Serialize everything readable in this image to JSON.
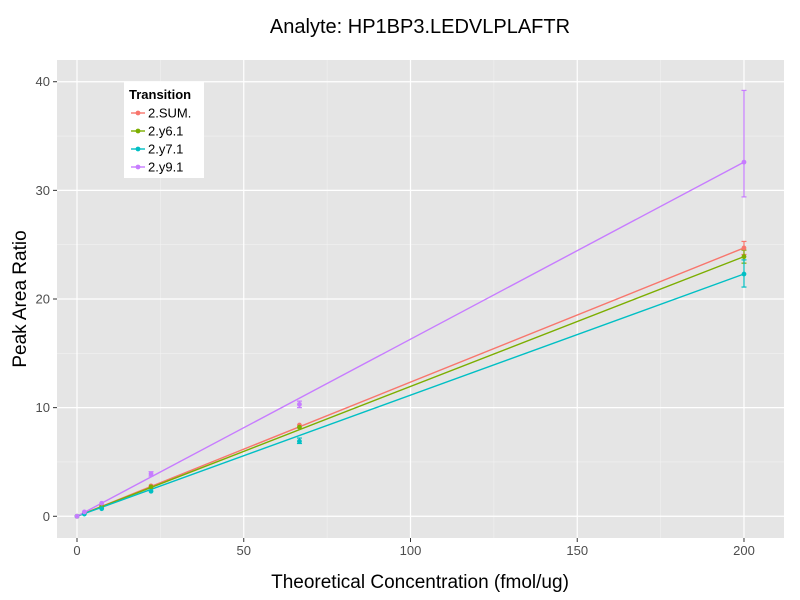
{
  "chart_data": {
    "type": "line",
    "title": "Analyte: HP1BP3.LEDVLPLAFTR",
    "xlabel": "Theoretical Concentration (fmol/ug)",
    "ylabel": "Peak Area Ratio",
    "xlim": [
      -6,
      212
    ],
    "ylim": [
      -2,
      42
    ],
    "x_ticks": [
      0,
      50,
      100,
      150,
      200
    ],
    "y_ticks": [
      0,
      10,
      20,
      30,
      40
    ],
    "grid": true,
    "legend": {
      "title": "Transition",
      "position": "top-left"
    },
    "x": [
      0,
      2.2,
      7.4,
      22.2,
      66.7,
      200
    ],
    "series": [
      {
        "name": "2.SUM.",
        "color": "#F8766D",
        "points": [
          0,
          0.3,
          1.0,
          2.8,
          8.4,
          24.7
        ],
        "fit": [
          0,
          24.7
        ],
        "error": [
          null,
          null,
          null,
          null,
          null,
          [
            24.1,
            25.3
          ]
        ]
      },
      {
        "name": "2.y6.1",
        "color": "#7CAE00",
        "points": [
          0,
          0.3,
          0.9,
          2.7,
          8.2,
          23.9
        ],
        "fit": [
          0,
          23.9
        ],
        "error": [
          null,
          null,
          null,
          null,
          null,
          [
            23.3,
            24.5
          ]
        ]
      },
      {
        "name": "2.y7.1",
        "color": "#00BFC4",
        "points": [
          0,
          0.2,
          0.7,
          2.3,
          6.9,
          22.3
        ],
        "fit": [
          0,
          22.3
        ],
        "error": [
          null,
          null,
          null,
          null,
          [
            6.7,
            7.2
          ],
          [
            21.1,
            23.6
          ]
        ]
      },
      {
        "name": "2.y9.1",
        "color": "#C77CFF",
        "points": [
          0,
          0.4,
          1.2,
          3.9,
          10.3,
          32.6
        ],
        "fit": [
          0,
          32.6
        ],
        "error": [
          null,
          null,
          null,
          [
            3.7,
            4.1
          ],
          [
            10.0,
            10.6
          ],
          [
            29.4,
            39.2
          ]
        ]
      }
    ]
  }
}
